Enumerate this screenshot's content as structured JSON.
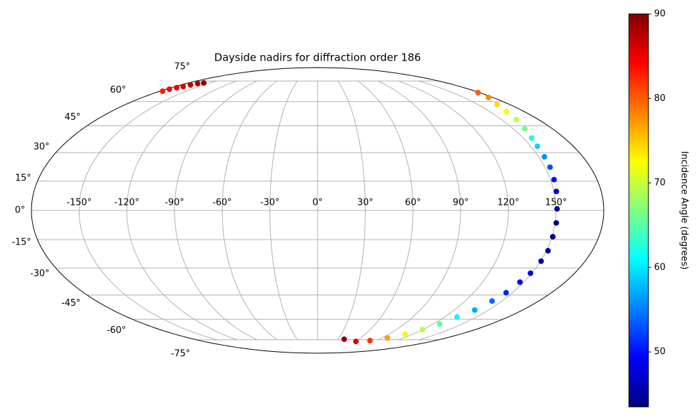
{
  "chart_data": {
    "type": "scatter",
    "projection": "mollweide",
    "title": "Dayside nadirs for diffraction order 186",
    "x": [
      178.4,
      175.5,
      168.1,
      164.4,
      161.9,
      158.8,
      156.3,
      154.7,
      153.9,
      153.4,
      152.3,
      151.5,
      150.6,
      150.7,
      150.5,
      151.1,
      150.4,
      149.1,
      147.2,
      145.1,
      142.0,
      138.0,
      131.8,
      126.8,
      119.5,
      110.6,
      97.3,
      80.3,
      60.7,
      38.7,
      -176.9,
      -176.3,
      -173.2,
      -169.9,
      -167.2,
      -164.1,
      -158.7
    ],
    "y": [
      66.1,
      62.7,
      58.0,
      53.6,
      48.6,
      43.3,
      38.1,
      33.5,
      27.8,
      22.3,
      15.8,
      9.7,
      0.8,
      -6.4,
      -13.5,
      -20.8,
      -26.3,
      -32.8,
      -37.7,
      -43.7,
      -48.6,
      -54.1,
      -58.5,
      -63.2,
      -67.1,
      -70.6,
      -73.4,
      -75.7,
      -76.4,
      -74.5,
      67.1,
      68.6,
      69.7,
      70.6,
      71.8,
      72.9,
      73.4
    ],
    "color_values": [
      80,
      78,
      74,
      72,
      69,
      66,
      62,
      59,
      56,
      53,
      50,
      47,
      45,
      44,
      44,
      45,
      46,
      48,
      49,
      51,
      54,
      57,
      61,
      65,
      69,
      73,
      77,
      82,
      86,
      89,
      83,
      84,
      85,
      86,
      87,
      88,
      89
    ],
    "xlim": [
      -180,
      180
    ],
    "ylim": [
      -90,
      90
    ],
    "xticks": [
      {
        "value": -150,
        "label": "-150°"
      },
      {
        "value": -120,
        "label": "-120°"
      },
      {
        "value": -90,
        "label": "-90°"
      },
      {
        "value": -60,
        "label": "-60°"
      },
      {
        "value": -30,
        "label": "-30°"
      },
      {
        "value": 0,
        "label": "0°"
      },
      {
        "value": 30,
        "label": "30°"
      },
      {
        "value": 60,
        "label": "60°"
      },
      {
        "value": 90,
        "label": "90°"
      },
      {
        "value": 120,
        "label": "120°"
      },
      {
        "value": 150,
        "label": "150°"
      }
    ],
    "yticks": [
      {
        "value": -75,
        "label": "-75°"
      },
      {
        "value": -60,
        "label": "-60°"
      },
      {
        "value": -45,
        "label": "-45°"
      },
      {
        "value": -30,
        "label": "-30°"
      },
      {
        "value": -15,
        "label": "-15°"
      },
      {
        "value": 0,
        "label": "0°"
      },
      {
        "value": 15,
        "label": "15°"
      },
      {
        "value": 30,
        "label": "30°"
      },
      {
        "value": 45,
        "label": "45°"
      },
      {
        "value": 60,
        "label": "60°"
      },
      {
        "value": 75,
        "label": "75°"
      }
    ],
    "grid": true,
    "colorbar": {
      "label": "Incidence Angle (degrees)",
      "cmap": "jet",
      "lim": [
        43.5,
        90
      ],
      "ticks": [
        50,
        60,
        70,
        80,
        90
      ]
    }
  }
}
